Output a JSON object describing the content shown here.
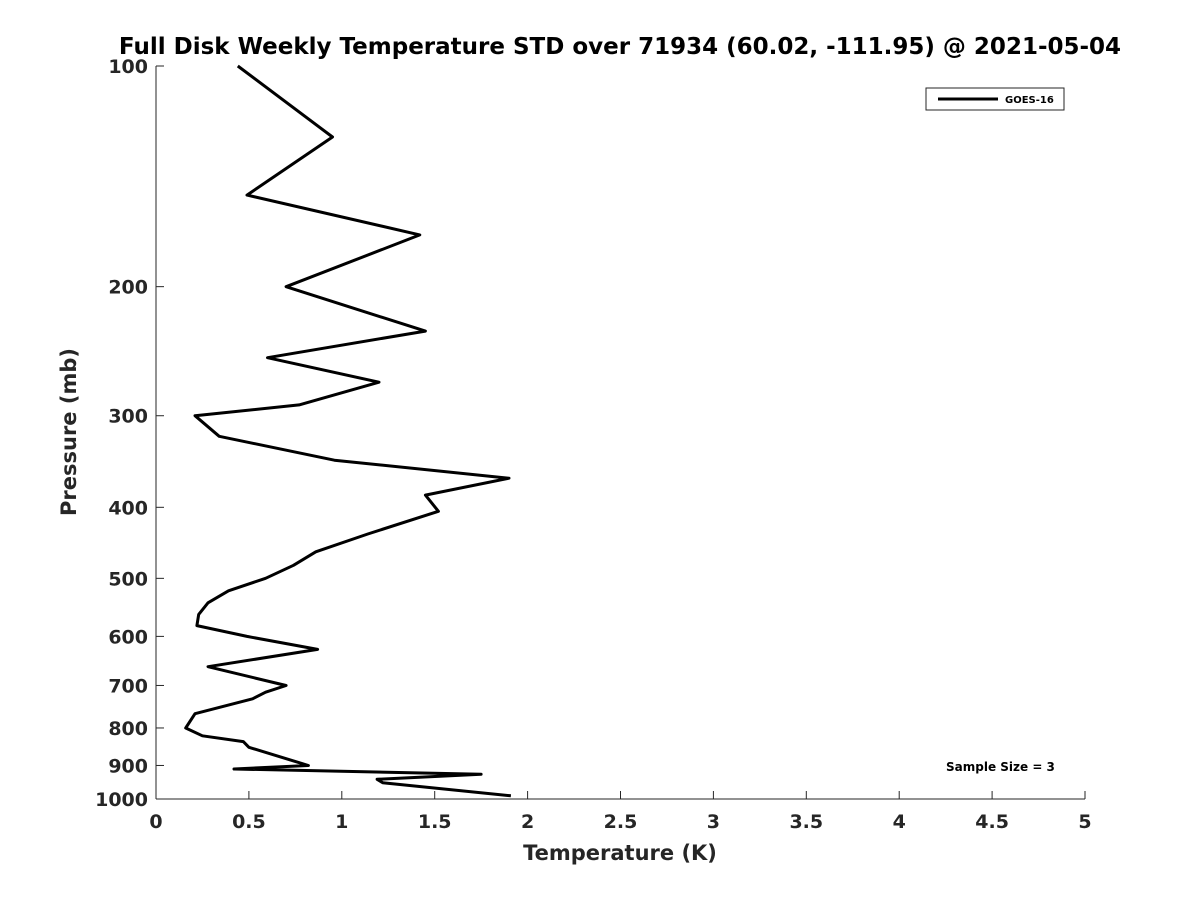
{
  "chart_data": {
    "type": "line",
    "title": "Full Disk Weekly Temperature STD over 71934 (60.02, -111.95) @ 2021-05-04",
    "xlabel": "Temperature (K)",
    "ylabel": "Pressure (mb)",
    "xlim": [
      0,
      5
    ],
    "ylim": [
      100,
      1000
    ],
    "yscale": "log",
    "y_reversed": true,
    "xticks": [
      0,
      0.5,
      1,
      1.5,
      2,
      2.5,
      3,
      3.5,
      4,
      4.5,
      5
    ],
    "xtick_labels": [
      "0",
      "0.5",
      "1",
      "1.5",
      "2",
      "2.5",
      "3",
      "3.5",
      "4",
      "4.5",
      "5"
    ],
    "yticks": [
      100,
      200,
      300,
      400,
      500,
      600,
      700,
      800,
      900,
      1000
    ],
    "ytick_labels": [
      "100",
      "200",
      "300",
      "400",
      "500",
      "600",
      "700",
      "800",
      "900",
      "1000"
    ],
    "grid": false,
    "legend_position": "top-right",
    "series": [
      {
        "name": "GOES-16",
        "color": "#000000",
        "x": [
          0.44,
          0.95,
          0.49,
          1.42,
          0.7,
          1.45,
          0.6,
          1.2,
          0.77,
          0.21,
          0.34,
          0.96,
          1.9,
          1.45,
          1.52,
          1.14,
          0.86,
          0.74,
          0.59,
          0.39,
          0.28,
          0.23,
          0.22,
          0.49,
          0.87,
          0.28,
          0.7,
          0.59,
          0.52,
          0.21,
          0.16,
          0.25,
          0.47,
          0.5,
          0.82,
          0.42,
          1.75,
          1.19,
          1.22,
          1.91
        ],
        "y": [
          100,
          125,
          150,
          170,
          200,
          230,
          250,
          270,
          290,
          300,
          320,
          345,
          365,
          385,
          405,
          435,
          460,
          480,
          500,
          520,
          540,
          560,
          580,
          600,
          625,
          660,
          700,
          715,
          730,
          765,
          800,
          820,
          835,
          850,
          900,
          910,
          925,
          940,
          950,
          990
        ]
      }
    ],
    "annotation": "Sample Size = 3"
  }
}
